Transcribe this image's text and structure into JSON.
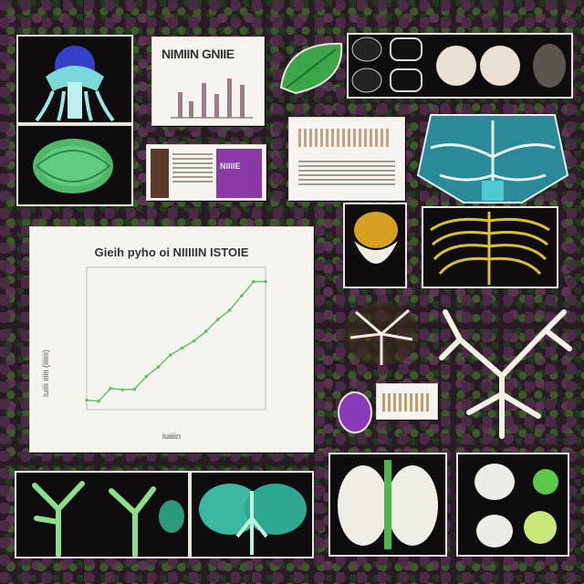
{
  "collage": {
    "doc_top_title": "NIMIIN GNIIE",
    "document_label": "NIIIIE"
  },
  "chart_data": {
    "type": "line",
    "title": "Gieih pyho oi NIIIIIN ISTOIE",
    "xlabel": "iuiiiin",
    "ylabel": "iuiiii iiiiii (iiiiiii)",
    "x": [
      1,
      2,
      3,
      4,
      5,
      6,
      7,
      8,
      9,
      10,
      11,
      12,
      13,
      14,
      15,
      16
    ],
    "values": [
      2,
      1.8,
      4.5,
      4.2,
      4.3,
      7,
      9,
      11.5,
      13,
      14.5,
      16.5,
      19,
      21,
      24,
      27,
      27
    ],
    "ylim": [
      0,
      30
    ],
    "color": "#6bbf6b"
  }
}
